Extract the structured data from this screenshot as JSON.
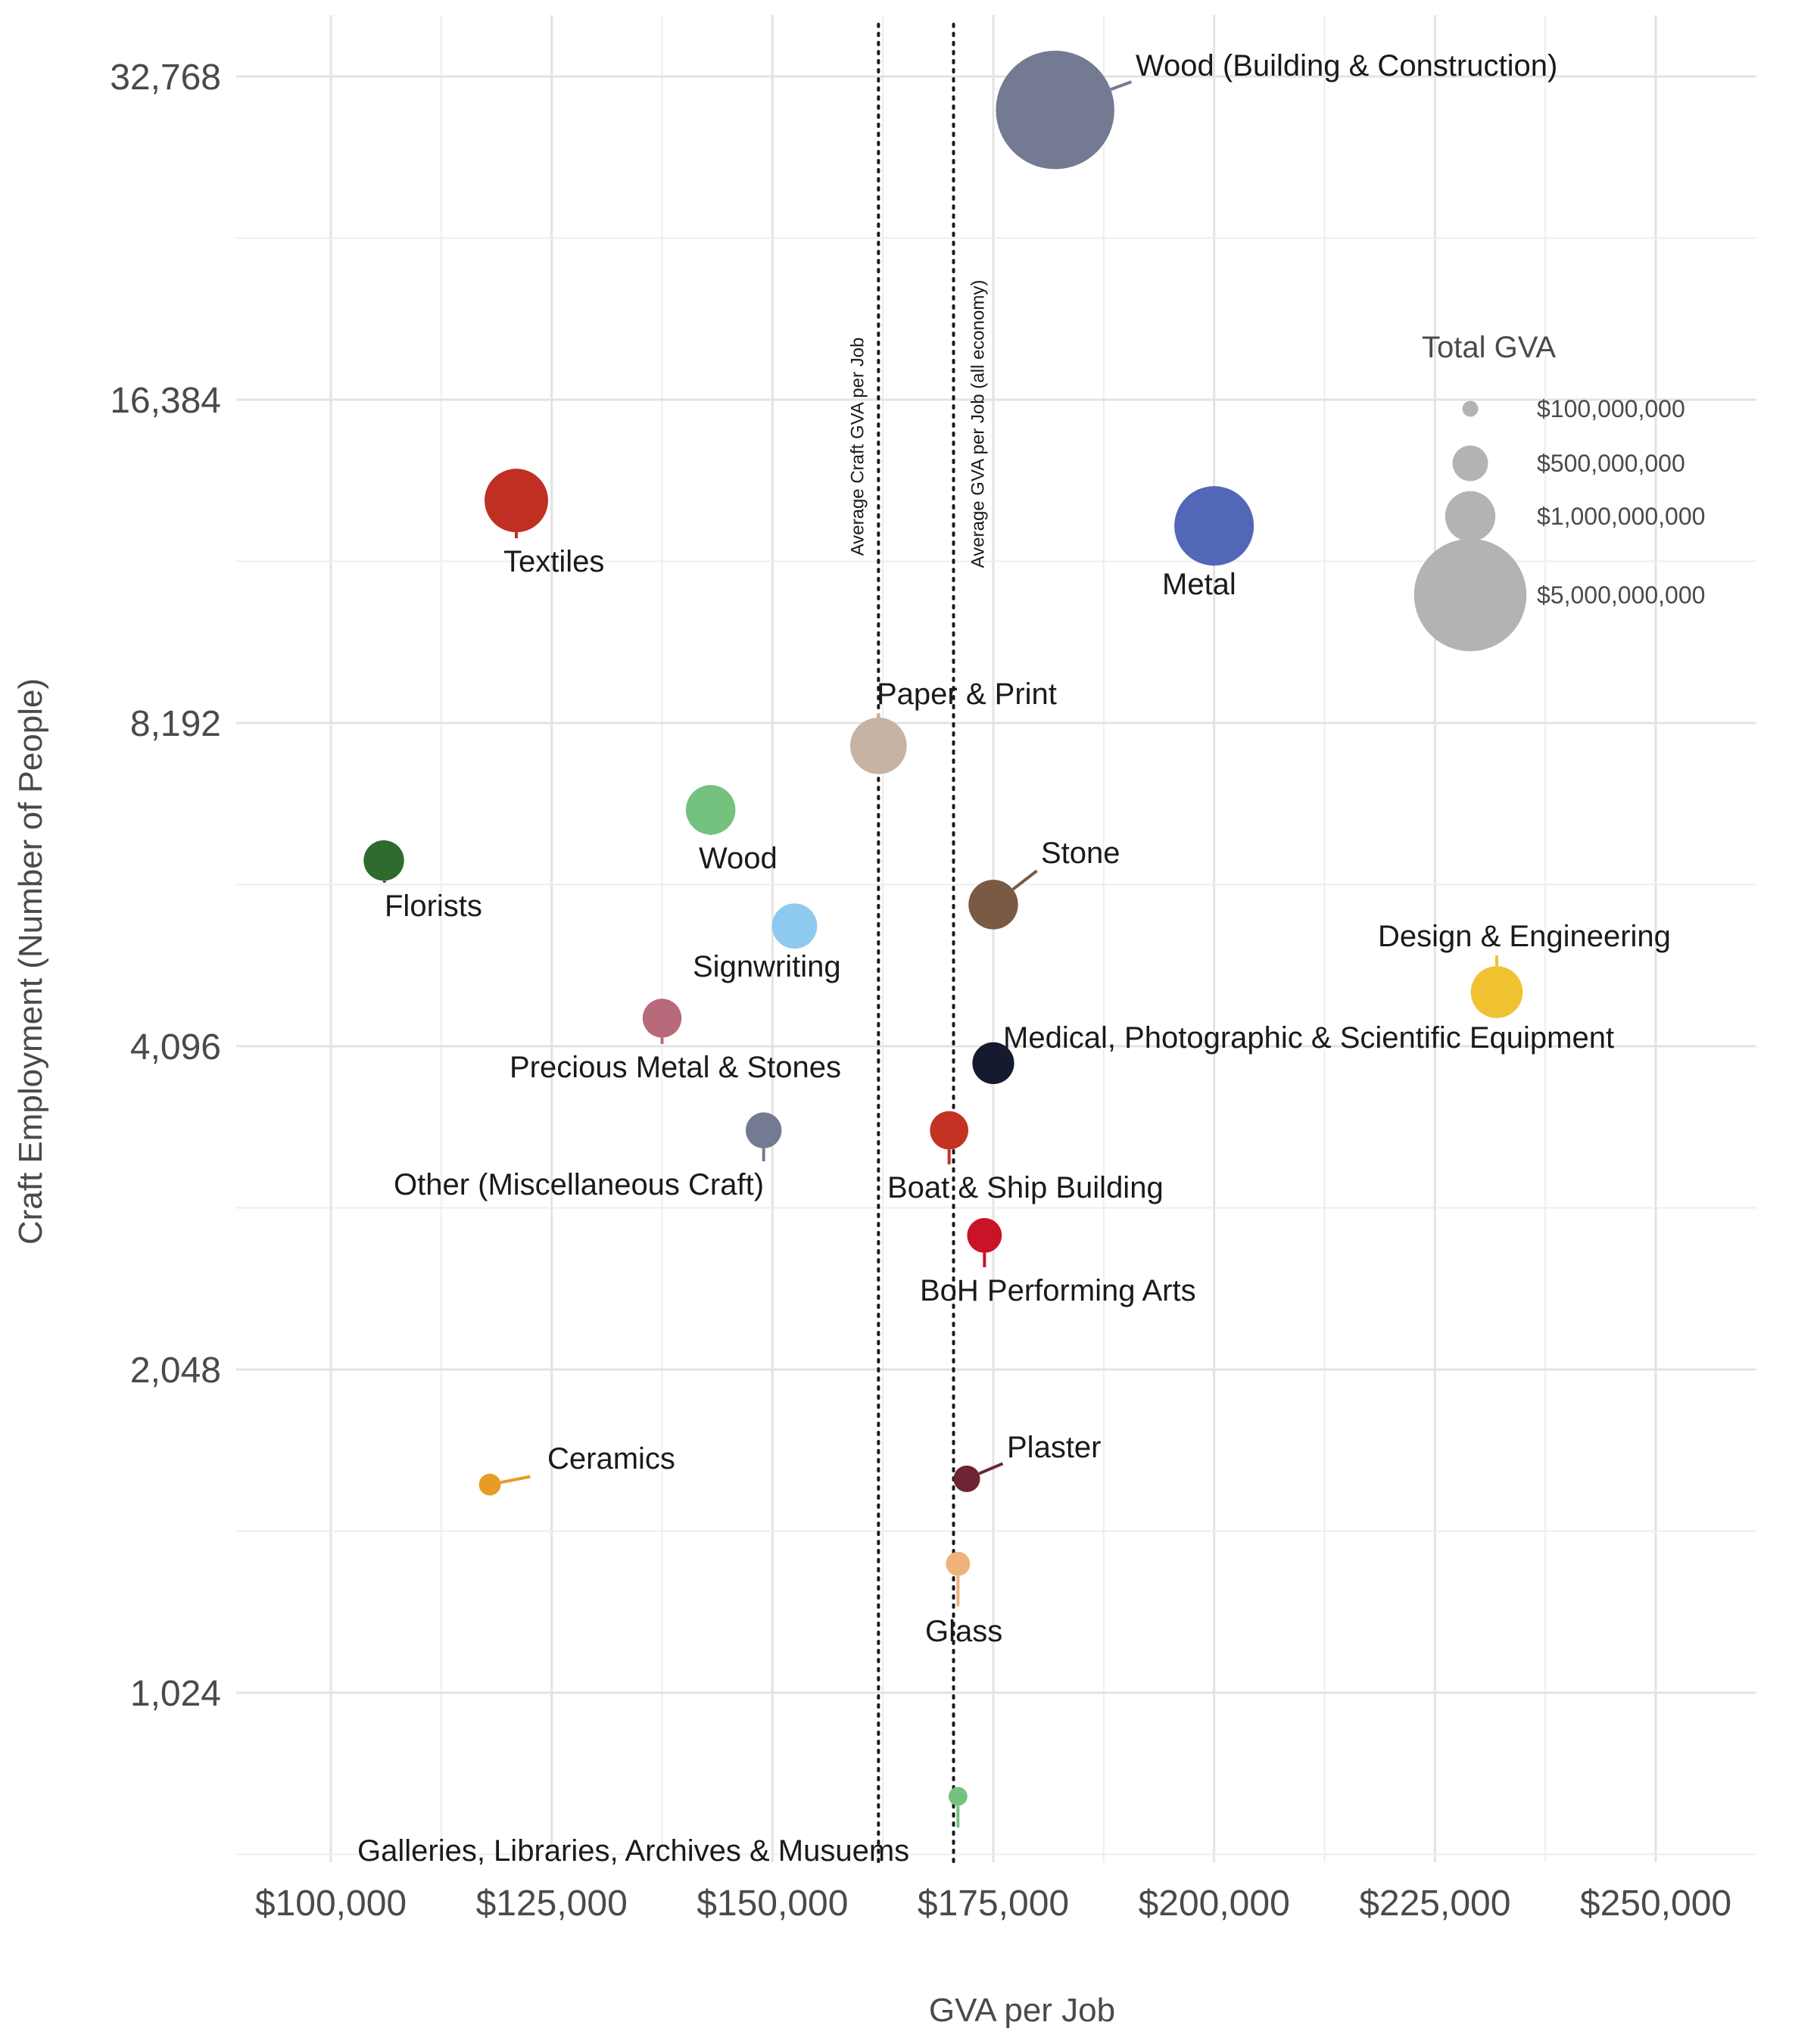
{
  "chart_data": {
    "type": "scatter",
    "xlabel": "GVA per Job",
    "ylabel": "Craft Employment (Number of People)",
    "x_scale": "linear",
    "y_scale": "log2",
    "xlim": [
      88000,
      267000
    ],
    "ylim": [
      680,
      38000
    ],
    "x_ticks": [
      100000,
      125000,
      150000,
      175000,
      200000,
      225000,
      250000
    ],
    "x_tick_labels": [
      "$100,000",
      "$125,000",
      "$150,000",
      "$175,000",
      "$200,000",
      "$225,000",
      "$250,000"
    ],
    "y_ticks": [
      1024,
      2048,
      4096,
      8192,
      16384,
      32768
    ],
    "y_tick_labels": [
      "1,024",
      "2,048",
      "4,096",
      "8,192",
      "16,384",
      "32,768"
    ],
    "grid": true,
    "legend": {
      "title": "Total GVA",
      "placement": "right",
      "entries": [
        {
          "value": 100000000,
          "label": "$100,000,000"
        },
        {
          "value": 500000000,
          "label": "$500,000,000"
        },
        {
          "value": 1000000000,
          "label": "$1,000,000,000"
        },
        {
          "value": 5000000000,
          "label": "$5,000,000,000"
        }
      ]
    },
    "reference_lines": [
      {
        "x": 162000,
        "label": "Average Craft GVA per Job"
      },
      {
        "x": 170500,
        "label": "Average GVA per Job (all economy)"
      }
    ],
    "points": [
      {
        "name": "Wood (Building & Construction)",
        "x": 182000,
        "y": 30500,
        "color": "#737a92"
      },
      {
        "name": "Textiles",
        "x": 121000,
        "y": 13200,
        "color": "#bf3022"
      },
      {
        "name": "Metal",
        "x": 200000,
        "y": 12500,
        "color": "#5267b6"
      },
      {
        "name": "Paper & Print",
        "x": 162000,
        "y": 7800,
        "color": "#c7b3a3"
      },
      {
        "name": "Wood",
        "x": 143000,
        "y": 6800,
        "color": "#74c27d"
      },
      {
        "name": "Florists",
        "x": 106000,
        "y": 6100,
        "color": "#2f6a2f"
      },
      {
        "name": "Stone",
        "x": 175000,
        "y": 5550,
        "color": "#7a5a45"
      },
      {
        "name": "Signwriting",
        "x": 152500,
        "y": 5300,
        "color": "#8ecaf0"
      },
      {
        "name": "Design & Engineering",
        "x": 232000,
        "y": 4600,
        "color": "#f0c232"
      },
      {
        "name": "Precious Metal & Stones",
        "x": 137500,
        "y": 4350,
        "color": "#b86a7a"
      },
      {
        "name": "Medical, Photographic & Scientific Equipment",
        "x": 175000,
        "y": 3950,
        "color": "#151a2e"
      },
      {
        "name": "Other (Miscellaneous Craft)",
        "x": 149000,
        "y": 3420,
        "color": "#737a92"
      },
      {
        "name": "Boat & Ship Building",
        "x": 170000,
        "y": 3420,
        "color": "#c33222"
      },
      {
        "name": "BoH Performing Arts",
        "x": 174000,
        "y": 2730,
        "color": "#c81426"
      },
      {
        "name": "Ceramics",
        "x": 118000,
        "y": 1600,
        "color": "#e69d23"
      },
      {
        "name": "Plaster",
        "x": 172000,
        "y": 1620,
        "color": "#6e2433"
      },
      {
        "name": "Glass",
        "x": 171000,
        "y": 1350,
        "color": "#eeb27a"
      },
      {
        "name": "Galleries, Libraries, Archives & Musuems",
        "x": 171000,
        "y": 820,
        "color": "#74c27d"
      }
    ]
  }
}
